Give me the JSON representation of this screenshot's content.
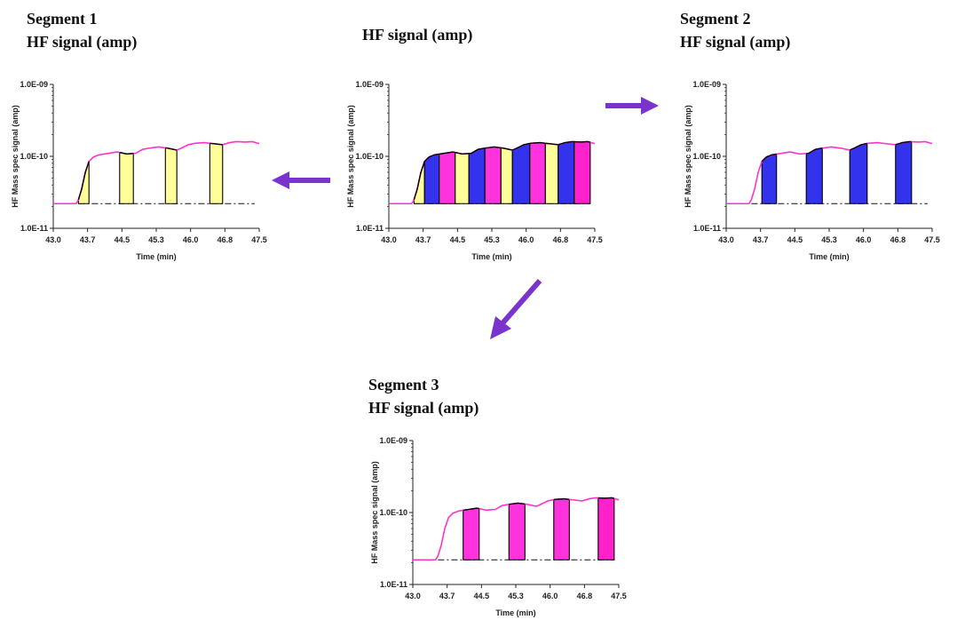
{
  "headings": {
    "seg1_title": "Segment 1",
    "seg1_sub": "HF  signal (amp)",
    "center_sub": "HF  signal (amp)",
    "seg2_title": "Segment 2",
    "seg2_sub": "HF  signal (amp)",
    "seg3_title": "Segment 3",
    "seg3_sub": "HF  signal (amp)"
  },
  "chart_data": [
    {
      "id": "segment-1",
      "type": "area",
      "title": "Segment 1",
      "subtitle": "HF  signal (amp)",
      "xlabel": "Time (min)",
      "ylabel": "HF Mass spec signal (amp)",
      "x_ticks": [
        "43.0",
        "43.7",
        "44.5",
        "45.3",
        "46.0",
        "46.8",
        "47.5"
      ],
      "y_ticks": [
        "1.0E-11",
        "1.0E-10",
        "1.0E-09"
      ],
      "xlim": [
        43.0,
        47.5
      ],
      "ylim": [
        1e-11,
        1e-09
      ],
      "y_scale": "log",
      "baseline": 2.2e-11,
      "series": [
        {
          "x": [
            43.0,
            43.3,
            43.5,
            43.55,
            43.62,
            43.7,
            43.78,
            43.88,
            44.0,
            44.2,
            44.4,
            44.6,
            44.8,
            44.95,
            45.1,
            45.3,
            45.5,
            45.7,
            45.8,
            45.95,
            46.1,
            46.3,
            46.5,
            46.7,
            46.85,
            47.0,
            47.2,
            47.35,
            47.5
          ],
          "y": [
            2.2e-11,
            2.2e-11,
            2.2e-11,
            2.5e-11,
            3.5e-11,
            6e-11,
            8.5e-11,
            9.8e-11,
            1.05e-10,
            1.1e-10,
            1.15e-10,
            1.08e-10,
            1.1e-10,
            1.25e-10,
            1.3e-10,
            1.35e-10,
            1.3e-10,
            1.22e-10,
            1.3e-10,
            1.45e-10,
            1.52e-10,
            1.55e-10,
            1.5e-10,
            1.45e-10,
            1.55e-10,
            1.6e-10,
            1.58e-10,
            1.6e-10,
            1.5e-10
          ]
        }
      ],
      "segments": [
        {
          "x0": 43.55,
          "x1": 43.78,
          "color": "#ffff99"
        },
        {
          "x0": 44.45,
          "x1": 44.75,
          "color": "#ffff99"
        },
        {
          "x0": 45.45,
          "x1": 45.7,
          "color": "#ffff99"
        },
        {
          "x0": 46.42,
          "x1": 46.7,
          "color": "#ffff99"
        }
      ],
      "colors": {
        "line": "#ff33cc",
        "edge": "#000000"
      }
    },
    {
      "id": "combined",
      "type": "area",
      "title": "",
      "subtitle": "HF  signal (amp)",
      "xlabel": "Time (min)",
      "ylabel": "HF Mass spec signal (amp)",
      "x_ticks": [
        "43.0",
        "43.7",
        "44.5",
        "45.3",
        "46.0",
        "46.8",
        "47.5"
      ],
      "y_ticks": [
        "1.0E-11",
        "1.0E-10",
        "1.0E-09"
      ],
      "xlim": [
        43.0,
        47.5
      ],
      "ylim": [
        1e-11,
        1e-09
      ],
      "y_scale": "log",
      "baseline": 2.2e-11,
      "series": [
        {
          "x": [
            43.0,
            43.3,
            43.5,
            43.55,
            43.62,
            43.7,
            43.78,
            43.88,
            44.0,
            44.2,
            44.4,
            44.6,
            44.8,
            44.95,
            45.1,
            45.3,
            45.5,
            45.7,
            45.8,
            45.95,
            46.1,
            46.3,
            46.5,
            46.7,
            46.85,
            47.0,
            47.2,
            47.35,
            47.5
          ],
          "y": [
            2.2e-11,
            2.2e-11,
            2.2e-11,
            2.5e-11,
            3.5e-11,
            6e-11,
            8.5e-11,
            9.8e-11,
            1.05e-10,
            1.1e-10,
            1.15e-10,
            1.08e-10,
            1.1e-10,
            1.25e-10,
            1.3e-10,
            1.35e-10,
            1.3e-10,
            1.22e-10,
            1.3e-10,
            1.45e-10,
            1.52e-10,
            1.55e-10,
            1.5e-10,
            1.45e-10,
            1.55e-10,
            1.6e-10,
            1.58e-10,
            1.6e-10,
            1.5e-10
          ]
        }
      ],
      "segments": [
        {
          "x0": 43.55,
          "x1": 43.78,
          "color": "#ffff99"
        },
        {
          "x0": 43.78,
          "x1": 44.1,
          "color": "#3333ee"
        },
        {
          "x0": 44.1,
          "x1": 44.45,
          "color": "#ff33dd"
        },
        {
          "x0": 44.45,
          "x1": 44.75,
          "color": "#ffff99"
        },
        {
          "x0": 44.75,
          "x1": 45.1,
          "color": "#3333ee"
        },
        {
          "x0": 45.1,
          "x1": 45.45,
          "color": "#ff33dd"
        },
        {
          "x0": 45.45,
          "x1": 45.7,
          "color": "#ffff99"
        },
        {
          "x0": 45.7,
          "x1": 46.08,
          "color": "#3333ee"
        },
        {
          "x0": 46.08,
          "x1": 46.42,
          "color": "#ff33dd"
        },
        {
          "x0": 46.42,
          "x1": 46.7,
          "color": "#ffff99"
        },
        {
          "x0": 46.7,
          "x1": 47.05,
          "color": "#3333ee"
        },
        {
          "x0": 47.05,
          "x1": 47.4,
          "color": "#ff22cc"
        }
      ],
      "colors": {
        "line": "#ff33cc",
        "edge": "#000000"
      }
    },
    {
      "id": "segment-2",
      "type": "area",
      "title": "Segment 2",
      "subtitle": "HF  signal (amp)",
      "xlabel": "Time (min)",
      "ylabel": "HF Mass spec signal (amp)",
      "x_ticks": [
        "43.0",
        "43.7",
        "44.5",
        "45.3",
        "46.0",
        "46.8",
        "47.5"
      ],
      "y_ticks": [
        "1.0E-11",
        "1.0E-10",
        "1.0E-09"
      ],
      "xlim": [
        43.0,
        47.5
      ],
      "ylim": [
        1e-11,
        1e-09
      ],
      "y_scale": "log",
      "baseline": 2.2e-11,
      "series": [
        {
          "x": [
            43.0,
            43.3,
            43.5,
            43.55,
            43.62,
            43.7,
            43.78,
            43.88,
            44.0,
            44.2,
            44.4,
            44.6,
            44.8,
            44.95,
            45.1,
            45.3,
            45.5,
            45.7,
            45.8,
            45.95,
            46.1,
            46.3,
            46.5,
            46.7,
            46.85,
            47.0,
            47.2,
            47.35,
            47.5
          ],
          "y": [
            2.2e-11,
            2.2e-11,
            2.2e-11,
            2.5e-11,
            3.5e-11,
            6e-11,
            8.5e-11,
            9.8e-11,
            1.05e-10,
            1.1e-10,
            1.15e-10,
            1.08e-10,
            1.1e-10,
            1.25e-10,
            1.3e-10,
            1.35e-10,
            1.3e-10,
            1.22e-10,
            1.3e-10,
            1.45e-10,
            1.52e-10,
            1.55e-10,
            1.5e-10,
            1.45e-10,
            1.55e-10,
            1.6e-10,
            1.58e-10,
            1.6e-10,
            1.5e-10
          ]
        }
      ],
      "segments": [
        {
          "x0": 43.78,
          "x1": 44.1,
          "color": "#3333ee"
        },
        {
          "x0": 44.75,
          "x1": 45.1,
          "color": "#3333ee"
        },
        {
          "x0": 45.7,
          "x1": 46.08,
          "color": "#3333ee"
        },
        {
          "x0": 46.7,
          "x1": 47.05,
          "color": "#3333ee"
        }
      ],
      "colors": {
        "line": "#ff33cc",
        "edge": "#000000"
      }
    },
    {
      "id": "segment-3",
      "type": "area",
      "title": "Segment 3",
      "subtitle": "HF  signal (amp)",
      "xlabel": "Time (min)",
      "ylabel": "HF Mass spec signal (amp)",
      "x_ticks": [
        "43.0",
        "43.7",
        "44.5",
        "45.3",
        "46.0",
        "46.8",
        "47.5"
      ],
      "y_ticks": [
        "1.0E-11",
        "1.0E-10",
        "1.0E-09"
      ],
      "xlim": [
        43.0,
        47.5
      ],
      "ylim": [
        1e-11,
        1e-09
      ],
      "y_scale": "log",
      "baseline": 2.2e-11,
      "series": [
        {
          "x": [
            43.0,
            43.3,
            43.5,
            43.55,
            43.62,
            43.7,
            43.78,
            43.88,
            44.0,
            44.2,
            44.4,
            44.6,
            44.8,
            44.95,
            45.1,
            45.3,
            45.5,
            45.7,
            45.8,
            45.95,
            46.1,
            46.3,
            46.5,
            46.7,
            46.85,
            47.0,
            47.2,
            47.35,
            47.5
          ],
          "y": [
            2.2e-11,
            2.2e-11,
            2.2e-11,
            2.5e-11,
            3.5e-11,
            6e-11,
            8.5e-11,
            9.8e-11,
            1.05e-10,
            1.1e-10,
            1.15e-10,
            1.08e-10,
            1.1e-10,
            1.25e-10,
            1.3e-10,
            1.35e-10,
            1.3e-10,
            1.22e-10,
            1.3e-10,
            1.45e-10,
            1.52e-10,
            1.55e-10,
            1.5e-10,
            1.45e-10,
            1.55e-10,
            1.6e-10,
            1.58e-10,
            1.6e-10,
            1.5e-10
          ]
        }
      ],
      "segments": [
        {
          "x0": 44.1,
          "x1": 44.45,
          "color": "#ff33dd"
        },
        {
          "x0": 45.1,
          "x1": 45.45,
          "color": "#ff33dd"
        },
        {
          "x0": 46.08,
          "x1": 46.42,
          "color": "#ff33dd"
        },
        {
          "x0": 47.05,
          "x1": 47.4,
          "color": "#ff22cc"
        }
      ],
      "colors": {
        "line": "#ff33cc",
        "edge": "#000000"
      }
    }
  ],
  "arrows": {
    "color": "#7a33cc"
  }
}
